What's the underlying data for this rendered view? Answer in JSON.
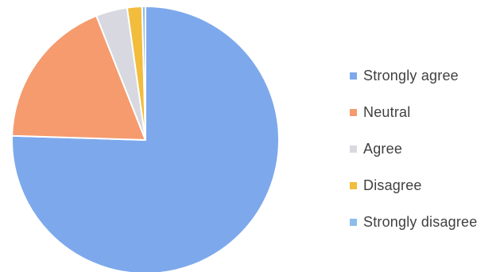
{
  "chart_data": {
    "type": "pie",
    "title": "",
    "categories": [
      "Strongly agree",
      "Neutral",
      "Agree",
      "Disagree",
      "Strongly disagree"
    ],
    "values": [
      75.5,
      18.5,
      3.8,
      1.8,
      0.4
    ],
    "colors": [
      "#7DA9EC",
      "#F59B6E",
      "#D8D8E0",
      "#F2BC3C",
      "#8CBDEB"
    ],
    "start_angle_deg": 0,
    "direction": "clockwise",
    "legend_position": "right"
  }
}
